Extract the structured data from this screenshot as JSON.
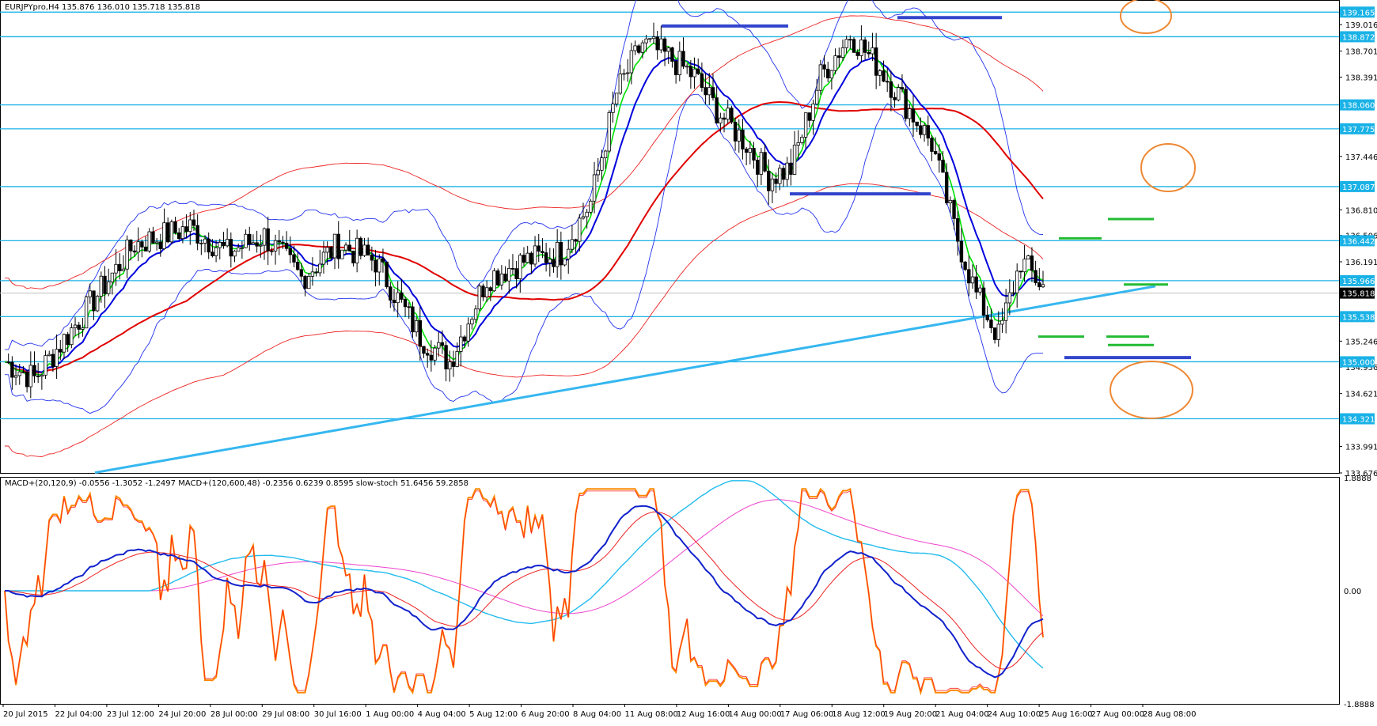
{
  "window": {
    "main_title": "EURJPYpro,H4 135.876 136.010 135.718 135.818",
    "indicator_title": "MACD+(20,120,9) -0.0556 -1.3052 -1.2497 MACD+(120,600,48) -0.2356 0.6239 0.8595 slow-stoch 51.6456 59.2858"
  },
  "chart_data": [
    {
      "type": "candlestick",
      "title": "EURJPYpro,H4 135.876 136.010 135.718 135.818",
      "ylim": [
        133.676,
        139.3
      ],
      "y_ticks": [
        "139.016",
        "138.701",
        "138.391",
        "137.446",
        "136.810",
        "136.506",
        "136.191",
        "135.246",
        "134.936",
        "134.621",
        "133.991",
        "133.676"
      ],
      "current_price": "135.818",
      "horizontal_levels": [
        "139.165",
        "138.872",
        "138.060",
        "137.775",
        "137.087",
        "136.442",
        "135.966",
        "135.538",
        "135.000",
        "134.321"
      ],
      "colors": {
        "level": "#1ab2e6",
        "bull": "#ffffff",
        "bear": "#000000",
        "ema_green": "#00e000",
        "ema_blue": "#0000dd",
        "ma_red": "#e00000",
        "trend": "#35b7f0",
        "bands": "#2233ee",
        "env_red": "#ee2222"
      },
      "markers": [
        "blue-top-lines",
        "blue-bottom-lines",
        "green-target-lines",
        "orange-circles"
      ]
    },
    {
      "type": "line",
      "title": "MACD+(20,120,9) -0.0556 -1.3052 -1.2497 MACD+(120,600,48) -0.2356 0.6239 0.8595 slow-stoch 51.6456 59.2858",
      "ylim": [
        -1.8888,
        1.8888
      ],
      "y_ticks": [
        "1.8888",
        "0.00",
        "-1.8888"
      ],
      "x_ticks": [
        "20 Jul 2015",
        "22 Jul 04:00",
        "23 Jul 12:00",
        "24 Jul 20:00",
        "28 Jul 00:00",
        "29 Jul 08:00",
        "30 Jul 16:00",
        "1 Aug 00:00",
        "4 Aug 04:00",
        "5 Aug 12:00",
        "6 Aug 20:00",
        "8 Aug 04:00",
        "11 Aug 08:00",
        "12 Aug 16:00",
        "14 Aug 00:00",
        "17 Aug 06:00",
        "18 Aug 12:00",
        "19 Aug 20:00",
        "21 Aug 04:00",
        "24 Aug 10:00",
        "25 Aug 16:00",
        "27 Aug 00:00",
        "28 Aug 08:00"
      ]
    }
  ]
}
